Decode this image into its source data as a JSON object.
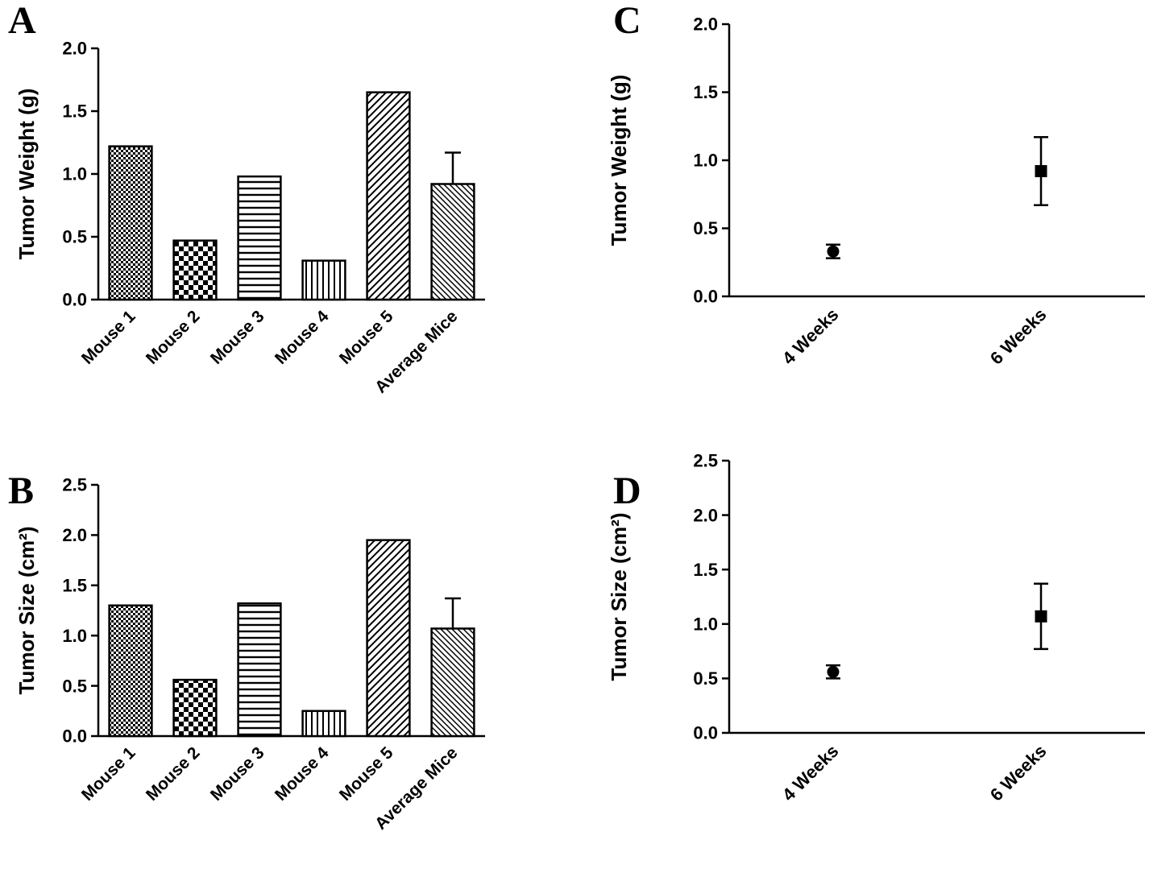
{
  "figure": {
    "background": "#ffffff",
    "ink_color": "#000000"
  },
  "chart_data": [
    {
      "panel": "A",
      "type": "bar",
      "ylabel": "Tumor Weight (g)",
      "ylim": [
        0,
        2.0
      ],
      "ytick_labels": [
        "0.0",
        "0.5",
        "1.0",
        "1.5",
        "2.0"
      ],
      "ytick_values": [
        0,
        0.5,
        1.0,
        1.5,
        2.0
      ],
      "categories": [
        "Mouse 1",
        "Mouse 2",
        "Mouse 3",
        "Mouse 4",
        "Mouse 5",
        "Average Mice"
      ],
      "values": [
        1.22,
        0.47,
        0.98,
        0.31,
        1.65,
        0.92
      ],
      "errors": [
        null,
        null,
        null,
        null,
        null,
        0.25
      ],
      "patterns": [
        "checker-fine",
        "checker-coarse",
        "hlines",
        "vlines",
        "diag-up",
        "diag-down"
      ],
      "grid": false,
      "legend": "none"
    },
    {
      "panel": "B",
      "type": "bar",
      "ylabel": "Tumor Size  (cm²)",
      "ylim": [
        0,
        2.5
      ],
      "ytick_labels": [
        "0.0",
        "0.5",
        "1.0",
        "1.5",
        "2.0",
        "2.5"
      ],
      "ytick_values": [
        0,
        0.5,
        1.0,
        1.5,
        2.0,
        2.5
      ],
      "categories": [
        "Mouse 1",
        "Mouse 2",
        "Mouse 3",
        "Mouse 4",
        "Mouse 5",
        "Average Mice"
      ],
      "values": [
        1.3,
        0.56,
        1.32,
        0.25,
        1.95,
        1.07
      ],
      "errors": [
        null,
        null,
        null,
        null,
        null,
        0.3
      ],
      "patterns": [
        "checker-fine",
        "checker-coarse",
        "hlines",
        "vlines",
        "diag-up",
        "diag-down"
      ],
      "grid": false,
      "legend": "none"
    },
    {
      "panel": "C",
      "type": "scatter",
      "ylabel": "Tumor Weight (g)",
      "ylim": [
        0,
        2.0
      ],
      "ytick_labels": [
        "0.0",
        "0.5",
        "1.0",
        "1.5",
        "2.0"
      ],
      "ytick_values": [
        0,
        0.5,
        1.0,
        1.5,
        2.0
      ],
      "categories": [
        "4 Weeks",
        "6 Weeks"
      ],
      "values": [
        0.33,
        0.92
      ],
      "errors": [
        0.05,
        0.25
      ],
      "markers": [
        "circle",
        "square"
      ],
      "grid": false,
      "legend": "none"
    },
    {
      "panel": "D",
      "type": "scatter",
      "ylabel": "Tumor Size  (cm²)",
      "ylim": [
        0,
        2.5
      ],
      "ytick_labels": [
        "0.0",
        "0.5",
        "1.0",
        "1.5",
        "2.0",
        "2.5"
      ],
      "ytick_values": [
        0,
        0.5,
        1.0,
        1.5,
        2.0,
        2.5
      ],
      "categories": [
        "4 Weeks",
        "6 Weeks"
      ],
      "values": [
        0.56,
        1.07
      ],
      "errors": [
        0.06,
        0.3
      ],
      "markers": [
        "circle",
        "square"
      ],
      "grid": false,
      "legend": "none"
    }
  ]
}
